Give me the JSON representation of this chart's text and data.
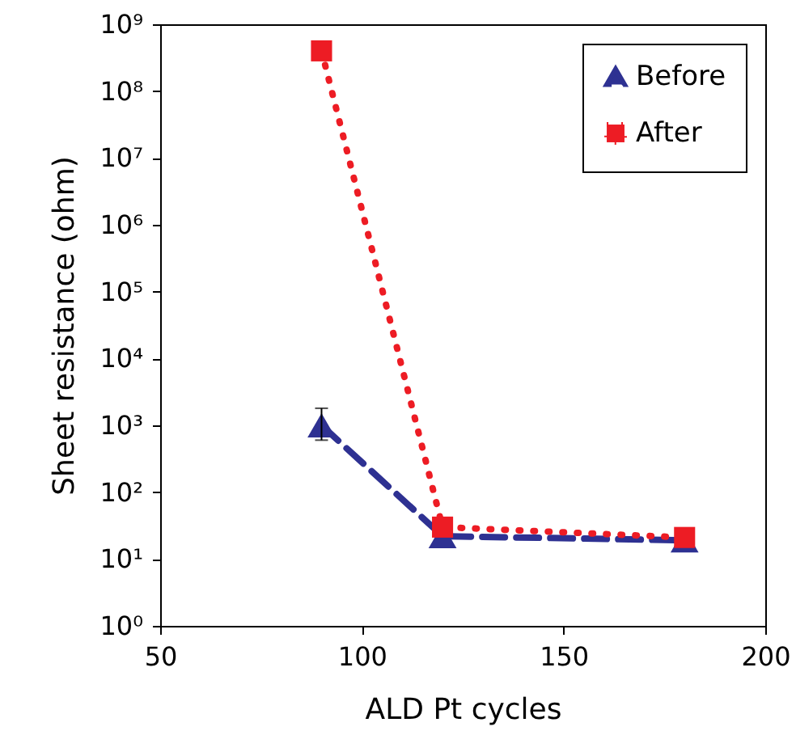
{
  "chart_data": {
    "type": "line",
    "xlabel": "ALD Pt cycles",
    "ylabel": "Sheet resistance (ohm)",
    "x": [
      90,
      120,
      180
    ],
    "series": [
      {
        "name": "Before",
        "color": "#2e3192",
        "values": [
          1000,
          22,
          19
        ],
        "errors": [
          [
            600,
            1800
          ],
          null,
          null
        ],
        "marker": "triangle",
        "line_style": "dashed"
      },
      {
        "name": "After",
        "color": "#ed1c24",
        "values": [
          400000000,
          30,
          21
        ],
        "marker": "square",
        "line_style": "dotted"
      }
    ],
    "xlim": [
      50,
      200
    ],
    "xticks": [
      50,
      100,
      150,
      200
    ],
    "ylim": [
      1,
      1000000000
    ],
    "log": "y",
    "yticks": [
      {
        "value": 1,
        "label": "10⁰"
      },
      {
        "value": 10,
        "label": "10¹"
      },
      {
        "value": 100,
        "label": "10²"
      },
      {
        "value": 1000,
        "label": "10³"
      },
      {
        "value": 10000,
        "label": "10⁴"
      },
      {
        "value": 100000,
        "label": "10⁵"
      },
      {
        "value": 1000000,
        "label": "10⁶"
      },
      {
        "value": 10000000,
        "label": "10⁷"
      },
      {
        "value": 100000000,
        "label": "10⁸"
      },
      {
        "value": 1000000000,
        "label": "10⁹"
      }
    ],
    "grid": false,
    "legend": "top right"
  }
}
